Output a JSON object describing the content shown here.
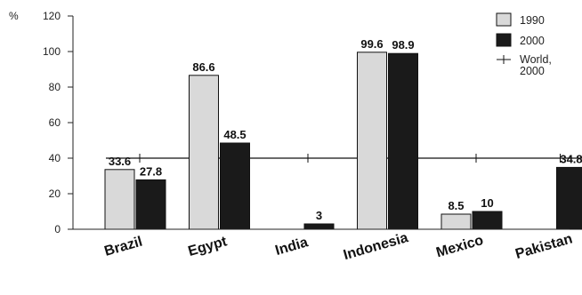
{
  "chart_data": {
    "type": "bar",
    "unit_label": "%",
    "categories": [
      "Brazil",
      "Egypt",
      "India",
      "Indonesia",
      "Mexico",
      "Pakistan"
    ],
    "series": [
      {
        "name": "1990",
        "color": "#d9d9d9",
        "values": [
          33.6,
          86.6,
          null,
          99.6,
          8.5,
          null
        ],
        "value_labels": [
          "33.6",
          "86.6",
          "",
          "99.6",
          "8.5",
          ""
        ]
      },
      {
        "name": "2000",
        "color": "#1a1a1a",
        "values": [
          27.8,
          48.5,
          3,
          98.9,
          10,
          34.8
        ],
        "value_labels": [
          "27.8",
          "48.5",
          "3",
          "98.9",
          "10",
          "34.8"
        ]
      }
    ],
    "reference_line": {
      "name_lines": [
        "World,",
        "2000"
      ],
      "value": 40
    },
    "ylim": [
      0,
      120
    ],
    "yticks": [
      0,
      20,
      40,
      60,
      80,
      100,
      120
    ],
    "legend_position": "top-right",
    "grid": false
  }
}
